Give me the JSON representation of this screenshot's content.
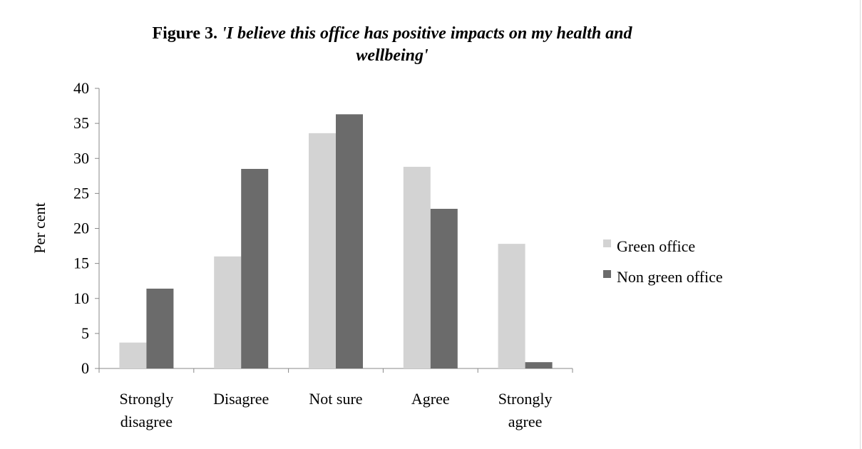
{
  "title": {
    "prefix": "Figure 3. ",
    "quote_line1": "'I believe this office has positive impacts on my health and",
    "quote_line2": "wellbeing'"
  },
  "chart_data": {
    "type": "bar",
    "categories": [
      [
        "Strongly",
        "disagree"
      ],
      [
        "Disagree"
      ],
      [
        "Not sure"
      ],
      [
        "Agree"
      ],
      [
        "Strongly",
        "agree"
      ]
    ],
    "series": [
      {
        "name": "Green office",
        "color": "#d3d3d3",
        "values": [
          3.7,
          16.0,
          33.6,
          28.8,
          17.8
        ]
      },
      {
        "name": "Non green office",
        "color": "#6b6b6b",
        "values": [
          11.4,
          28.5,
          36.3,
          22.8,
          0.9
        ]
      }
    ],
    "ylabel": "Per cent",
    "ylim": [
      0,
      40
    ],
    "yticks": [
      0,
      5,
      10,
      15,
      20,
      25,
      30,
      35,
      40
    ],
    "grid": false,
    "legend_position": "right"
  }
}
